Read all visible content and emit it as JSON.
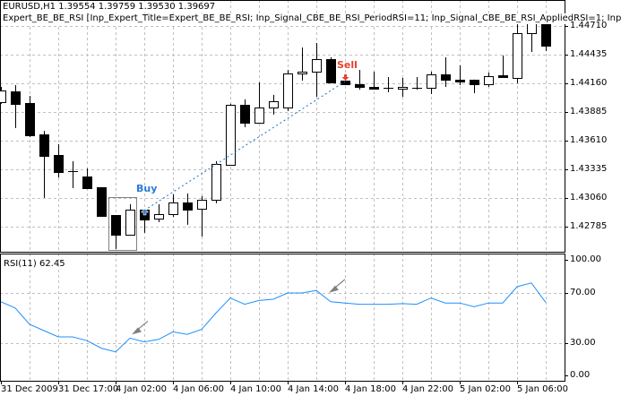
{
  "header": {
    "symbol_line": "EURUSD,H1  1.39554 1.39759 1.39530 1.39697",
    "expert_line": "Expert_BE_BE_RSI [Inp_Expert_Title=Expert_BE_BE_RSI; Inp_Signal_CBE_BE_RSI_PeriodRSI=11; Inp_Signal_CBE_BE_RSI_AppliedRSI=1; Inp"
  },
  "colors": {
    "buy": "#2a7bd4",
    "sell": "#e8402a",
    "rsi_line": "#1e90ff",
    "grid": "#c0c0c0",
    "trade_line": "#1e6fc4",
    "arrow": "#808080"
  },
  "price_axis": {
    "labels": [
      "1.44710",
      "1.44435",
      "1.44160",
      "1.43885",
      "1.43610",
      "1.43335",
      "1.43060",
      "1.42785"
    ]
  },
  "time_axis": {
    "labels": [
      "31 Dec 2009",
      "31 Dec 17:00",
      "4 Jan 02:00",
      "4 Jan 06:00",
      "4 Jan 10:00",
      "4 Jan 14:00",
      "4 Jan 18:00",
      "4 Jan 22:00",
      "5 Jan 02:00",
      "5 Jan 06:00"
    ]
  },
  "markers": {
    "buy_label": "Buy",
    "sell_label": "Sell",
    "buy_candle": 10,
    "sell_candle": 24
  },
  "chart_data": [
    {
      "type": "candlestick",
      "columns": [
        "open",
        "high",
        "low",
        "close"
      ],
      "candles": [
        [
          1.4398,
          1.44126,
          1.43963,
          1.44091
        ],
        [
          1.44083,
          1.44143,
          1.43731,
          1.43963
        ],
        [
          1.43971,
          1.4404,
          1.43645,
          1.43662
        ],
        [
          1.43671,
          1.43705,
          1.43061,
          1.43464
        ],
        [
          1.43473,
          1.43576,
          1.43258,
          1.4331
        ],
        [
          1.43318,
          1.43413,
          1.43155,
          1.43316
        ],
        [
          1.43267,
          1.43344,
          1.43155,
          1.43155
        ],
        [
          1.43164,
          1.43164,
          1.4288,
          1.42889
        ],
        [
          1.42897,
          1.42897,
          1.42571,
          1.42708
        ],
        [
          1.42708,
          1.43001,
          1.42708,
          1.42949
        ],
        [
          1.42949,
          1.42949,
          1.42726,
          1.42855
        ],
        [
          1.42863,
          1.43001,
          1.42829,
          1.42906
        ],
        [
          1.42906,
          1.43095,
          1.4288,
          1.43018
        ],
        [
          1.43018,
          1.43104,
          1.42803,
          1.42949
        ],
        [
          1.42958,
          1.43078,
          1.42691,
          1.43043
        ],
        [
          1.43043,
          1.43413,
          1.43009,
          1.43387
        ],
        [
          1.43379,
          1.43963,
          1.4337,
          1.43954
        ],
        [
          1.43954,
          1.44006,
          1.43739,
          1.43782
        ],
        [
          1.43782,
          1.44169,
          1.43774,
          1.43928
        ],
        [
          1.43928,
          1.44049,
          1.4386,
          1.43988
        ],
        [
          1.43928,
          1.44289,
          1.43894,
          1.44255
        ],
        [
          1.44255,
          1.44504,
          1.44186,
          1.44272
        ],
        [
          1.44272,
          1.44547,
          1.44031,
          1.44392
        ],
        [
          1.44392,
          1.44409,
          1.44169,
          1.44169
        ],
        [
          1.44186,
          1.44186,
          1.44152,
          1.44152
        ],
        [
          1.44152,
          1.44289,
          1.441,
          1.44126
        ],
        [
          1.44126,
          1.44272,
          1.441,
          1.44109
        ],
        [
          1.44117,
          1.4422,
          1.44074,
          1.44117
        ],
        [
          1.44109,
          1.44212,
          1.44031,
          1.44126
        ],
        [
          1.44117,
          1.4422,
          1.441,
          1.44117
        ],
        [
          1.44117,
          1.44272,
          1.44057,
          1.44246
        ],
        [
          1.44246,
          1.44409,
          1.44126,
          1.44195
        ],
        [
          1.44195,
          1.44332,
          1.44143,
          1.44177
        ],
        [
          1.44195,
          1.44195,
          1.44066,
          1.44152
        ],
        [
          1.44152,
          1.44263,
          1.44126,
          1.44229
        ],
        [
          1.44238,
          1.44427,
          1.44212,
          1.4422
        ],
        [
          1.44212,
          1.44727,
          1.4416,
          1.44641
        ],
        [
          1.44641,
          1.4483,
          1.44461,
          1.44762
        ],
        [
          1.44753,
          1.4479,
          1.44469,
          1.44521
        ]
      ],
      "ylim": [
        1.4255,
        1.4485
      ]
    },
    {
      "type": "line",
      "title": "RSI(11) 62.45",
      "values": [
        63,
        58,
        45,
        40,
        35,
        35,
        32,
        26,
        23,
        34,
        31,
        33,
        39,
        37,
        41,
        54,
        66,
        61,
        64,
        65,
        70,
        70,
        72,
        63,
        62,
        61,
        61,
        61,
        61.5,
        61,
        66,
        62,
        62,
        59,
        62,
        62,
        75,
        78,
        62.45
      ],
      "ylim": [
        0,
        100
      ],
      "y_tick_labels": [
        "100.00",
        "70.00",
        "30.00",
        "0.00"
      ]
    }
  ]
}
